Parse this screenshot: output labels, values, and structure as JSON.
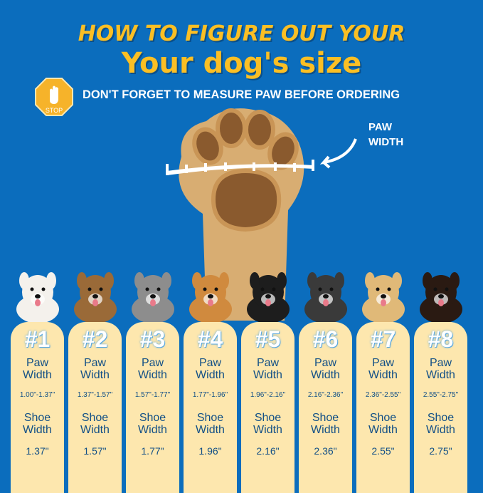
{
  "header": {
    "title_line1": "HOW TO FIGURE OUT YOUR",
    "title_line2": "Your dog's size",
    "subtitle": "DON'T FORGET TO MEASURE PAW BEFORE ORDERING",
    "stop_sign": "STOP"
  },
  "paw_label": {
    "line1": "PAW",
    "line2": "WIDTH"
  },
  "colors": {
    "background": "#0b6dbd",
    "title": "#fbbf24",
    "card": "#fde7ae",
    "card_text": "#124f86",
    "paw": "#d8ad72"
  },
  "sizes": [
    {
      "num": "#1",
      "paw_label": "Paw",
      "width_label": "Width",
      "range": "1.00\"-1.37\"",
      "shoe_label": "Shoe",
      "shoe_width_label": "Width",
      "shoe": "1.37\"",
      "dog_color": "#f4f1ec"
    },
    {
      "num": "#2",
      "paw_label": "Paw",
      "width_label": "Width",
      "range": "1.37\"-1.57\"",
      "shoe_label": "Shoe",
      "shoe_width_label": "Width",
      "shoe": "1.57\"",
      "dog_color": "#9a6a38"
    },
    {
      "num": "#3",
      "paw_label": "Paw",
      "width_label": "Width",
      "range": "1.57\"-1.77\"",
      "shoe_label": "Shoe",
      "shoe_width_label": "Width",
      "shoe": "1.77\"",
      "dog_color": "#8d8d8d"
    },
    {
      "num": "#4",
      "paw_label": "Paw",
      "width_label": "Width",
      "range": "1.77\"-1.96\"",
      "shoe_label": "Shoe",
      "shoe_width_label": "Width",
      "shoe": "1.96\"",
      "dog_color": "#d08a3e"
    },
    {
      "num": "#5",
      "paw_label": "Paw",
      "width_label": "Width",
      "range": "1.96\"-2.16\"",
      "shoe_label": "Shoe",
      "shoe_width_label": "Width",
      "shoe": "2.16\"",
      "dog_color": "#1d1d1d"
    },
    {
      "num": "#6",
      "paw_label": "Paw",
      "width_label": "Width",
      "range": "2.16\"-2.36\"",
      "shoe_label": "Shoe",
      "shoe_width_label": "Width",
      "shoe": "2.36\"",
      "dog_color": "#3a3a3a"
    },
    {
      "num": "#7",
      "paw_label": "Paw",
      "width_label": "Width",
      "range": "2.36\"-2.55\"",
      "shoe_label": "Shoe",
      "shoe_width_label": "Width",
      "shoe": "2.55\"",
      "dog_color": "#e0b978"
    },
    {
      "num": "#8",
      "paw_label": "Paw",
      "width_label": "Width",
      "range": "2.55\"-2.75\"",
      "shoe_label": "Shoe",
      "shoe_width_label": "Width",
      "shoe": "2.75\"",
      "dog_color": "#2a1a12"
    }
  ]
}
